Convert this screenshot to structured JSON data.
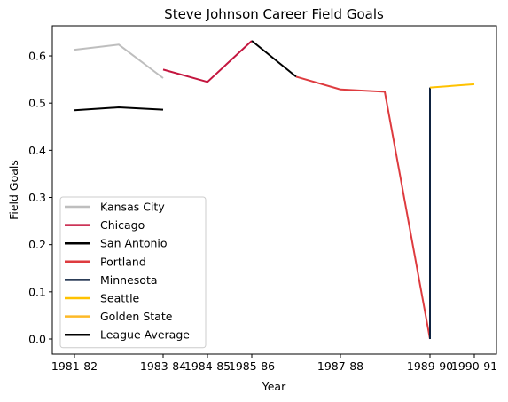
{
  "chart_data": {
    "type": "line",
    "title": "Steve Johnson  Career Field Goals",
    "xlabel": "Year",
    "ylabel": "Field Goals",
    "x_tick_labels": [
      "1981-82",
      "1983-84",
      "1984-85",
      "1985-86",
      "1987-88",
      "1989-90",
      "1990-91"
    ],
    "y_ticks": [
      "0.0",
      "0.1",
      "0.2",
      "0.3",
      "0.4",
      "0.5",
      "0.6"
    ],
    "ylim": [
      -0.032,
      0.664
    ],
    "legend_position": "lower-left",
    "grid": false,
    "series": [
      {
        "name": "Kansas City",
        "color": "#BEBEBE",
        "points": [
          [
            "1981-82",
            0.613
          ],
          [
            "1982-83",
            0.624
          ],
          [
            "1983-84",
            0.553
          ]
        ]
      },
      {
        "name": "Chicago",
        "color": "#C4163F",
        "points": [
          [
            "1983-84",
            0.571
          ],
          [
            "1984-85",
            0.545
          ],
          [
            "1985-86",
            0.632
          ]
        ]
      },
      {
        "name": "San Antonio",
        "color": "#000000",
        "points": [
          [
            "1985-86",
            0.632
          ],
          [
            "1986-87",
            0.556
          ]
        ]
      },
      {
        "name": "Portland",
        "color": "#DE3B3F",
        "points": [
          [
            "1986-87",
            0.556
          ],
          [
            "1987-88",
            0.529
          ],
          [
            "1988-89",
            0.524
          ],
          [
            "1989-90",
            0.0
          ]
        ]
      },
      {
        "name": "Minnesota",
        "color": "#0E2240",
        "points": [
          [
            "1989-90",
            0.0
          ],
          [
            "1989-90",
            0.533
          ]
        ]
      },
      {
        "name": "Seattle",
        "color": "#FFC200",
        "points": [
          [
            "1989-90",
            0.533
          ],
          [
            "1990-91",
            0.54
          ]
        ]
      },
      {
        "name": "Golden State",
        "color": "#FDB927",
        "points": []
      },
      {
        "name": "League Average",
        "color": "#000000",
        "points": [
          [
            "1981-82",
            0.485
          ],
          [
            "1982-83",
            0.491
          ],
          [
            "1983-84",
            0.486
          ]
        ]
      }
    ]
  }
}
